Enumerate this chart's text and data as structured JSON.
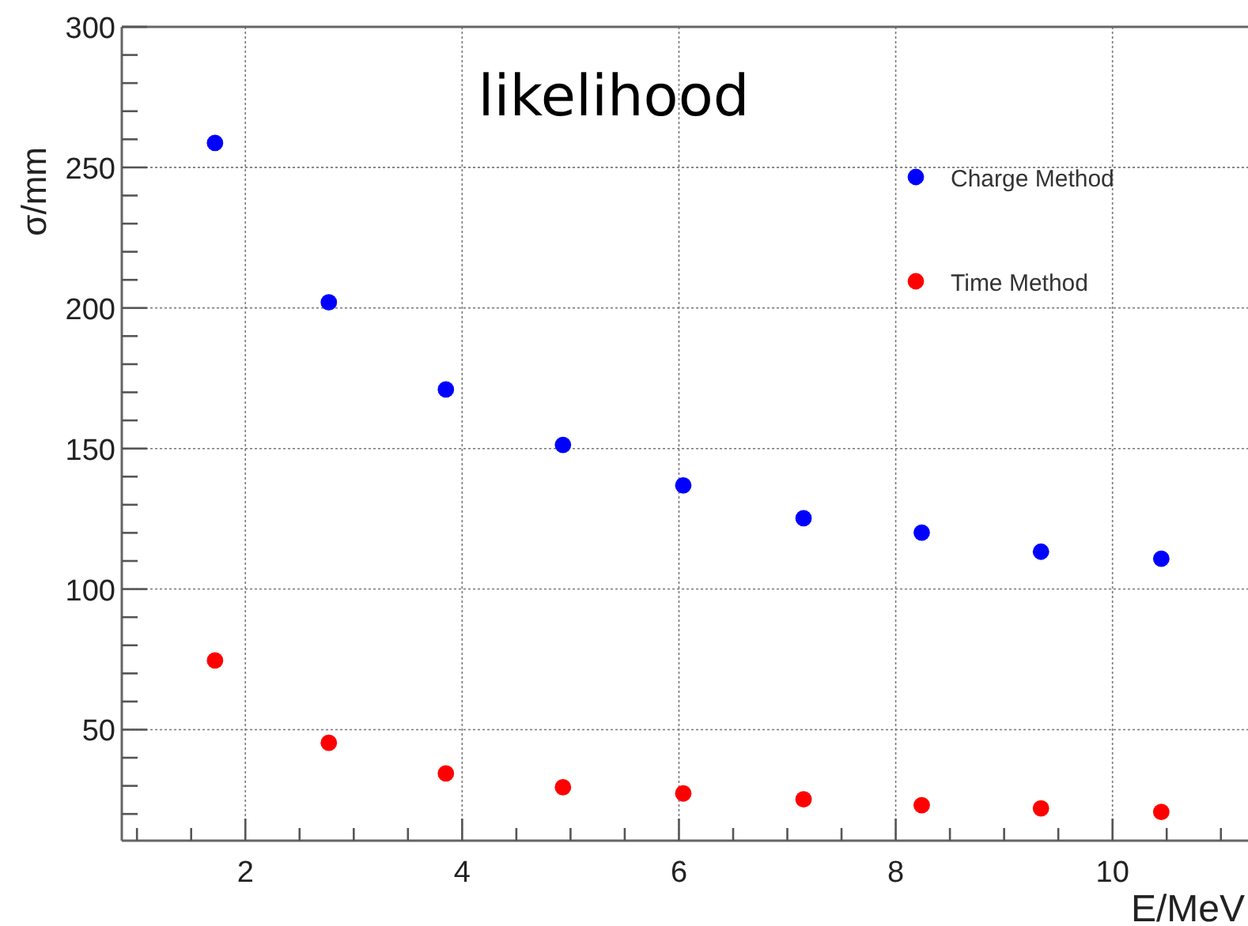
{
  "chart_data": {
    "type": "scatter",
    "title": "likelihood",
    "xlabel": "E/MeV",
    "ylabel": "σ/mm",
    "x": [
      1.72,
      2.77,
      3.85,
      4.93,
      6.04,
      7.15,
      8.24,
      9.34,
      10.45
    ],
    "series": [
      {
        "name": "Charge Method",
        "color": "#0000ff",
        "values": [
          258.7,
          202,
          171,
          151.3,
          136.9,
          125.2,
          120.1,
          113.3,
          110.8
        ]
      },
      {
        "name": "Time Method",
        "color": "#ff0000",
        "values": [
          74.6,
          45.3,
          34.4,
          29.5,
          27.3,
          25.2,
          23.1,
          22,
          20.7
        ]
      }
    ],
    "xlim": [
      0.86,
      11.25
    ],
    "ylim": [
      10.5,
      300
    ],
    "xticks": [
      {
        "value": 1,
        "label": null
      },
      {
        "value": 1.5,
        "label": null
      },
      2,
      {
        "value": 2.5,
        "label": null
      },
      {
        "value": 3,
        "label": null
      },
      {
        "value": 3.5,
        "label": null
      },
      4,
      {
        "value": 4.5,
        "label": null
      },
      {
        "value": 5,
        "label": null
      },
      {
        "value": 5.5,
        "label": null
      },
      6,
      {
        "value": 6.5,
        "label": null
      },
      {
        "value": 7,
        "label": null
      },
      {
        "value": 7.5,
        "label": null
      },
      8,
      {
        "value": 8.5,
        "label": null
      },
      {
        "value": 9,
        "label": null
      },
      {
        "value": 9.5,
        "label": null
      },
      10,
      {
        "value": 10.5,
        "label": null
      },
      {
        "value": 11,
        "label": null
      }
    ],
    "yticks": [
      {
        "value": 20,
        "label": null
      },
      {
        "value": 30,
        "label": null
      },
      {
        "value": 40,
        "label": null
      },
      50,
      {
        "value": 60,
        "label": null
      },
      {
        "value": 70,
        "label": null
      },
      {
        "value": 80,
        "label": null
      },
      {
        "value": 90,
        "label": null
      },
      100,
      {
        "value": 110,
        "label": null
      },
      {
        "value": 120,
        "label": null
      },
      {
        "value": 130,
        "label": null
      },
      {
        "value": 140,
        "label": null
      },
      150,
      {
        "value": 160,
        "label": null
      },
      {
        "value": 170,
        "label": null
      },
      {
        "value": 180,
        "label": null
      },
      {
        "value": 190,
        "label": null
      },
      200,
      {
        "value": 210,
        "label": null
      },
      {
        "value": 220,
        "label": null
      },
      {
        "value": 230,
        "label": null
      },
      {
        "value": 240,
        "label": null
      },
      250,
      {
        "value": 260,
        "label": null
      },
      {
        "value": 270,
        "label": null
      },
      {
        "value": 280,
        "label": null
      },
      {
        "value": 290,
        "label": null
      },
      300
    ],
    "grid": true,
    "legend": "top right",
    "marker": "circle"
  }
}
